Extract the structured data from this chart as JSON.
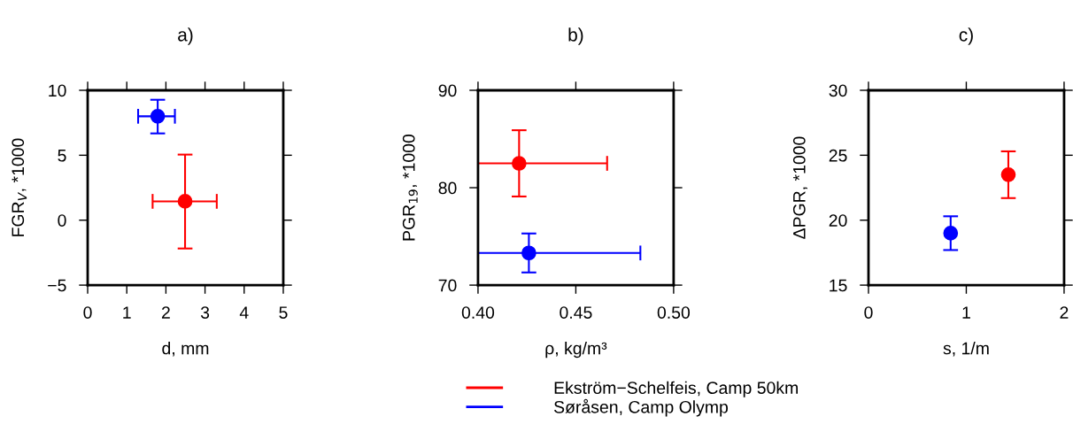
{
  "chart_data": [
    {
      "type": "scatter",
      "title": "a)",
      "xlabel": "d, mm",
      "ylabel": "FGR$_{V}$, *1000",
      "xlim": [
        0,
        5
      ],
      "xticks": [
        0,
        1,
        2,
        3,
        4,
        5
      ],
      "ylim": [
        -5,
        10
      ],
      "yticks": [
        {
          "value": -5,
          "label": "−5"
        },
        0,
        5,
        10
      ],
      "marker": "circle",
      "grid": false,
      "legend": false,
      "series": [
        {
          "color": "#ff0000",
          "x": [
            2.49
          ],
          "values": [
            1.45
          ],
          "xerrors": [
            [
              1.66,
              3.3
            ]
          ],
          "errors": [
            [
              -2.18,
              5.05
            ]
          ]
        },
        {
          "color": "#0000ff",
          "x": [
            1.79
          ],
          "values": [
            8.0
          ],
          "xerrors": [
            [
              1.29,
              2.23
            ]
          ],
          "errors": [
            [
              6.68,
              9.27
            ]
          ]
        }
      ]
    },
    {
      "type": "scatter",
      "title": "b)",
      "xlabel": "ρ, kg/m³",
      "ylabel": "PGR$_{19}$, *1000",
      "xlim": [
        0.4,
        0.5
      ],
      "xticks": [
        {
          "value": 0.4,
          "label": "0.40"
        },
        {
          "value": 0.45,
          "label": "0.45"
        },
        {
          "value": 0.5,
          "label": "0.50"
        }
      ],
      "ylim": [
        70,
        90
      ],
      "yticks": [
        70,
        80,
        90
      ],
      "marker": "circle",
      "grid": false,
      "legend": "bottom",
      "series": [
        {
          "name": "Ekström−Schelfeis, Camp 50km",
          "color": "#ff0000",
          "x": [
            0.421
          ],
          "values": [
            82.5
          ],
          "xerrors": [
            [
              0.4,
              0.466
            ]
          ],
          "errors": [
            [
              79.1,
              85.9
            ]
          ]
        },
        {
          "name": "Søråsen, Camp Olymp",
          "color": "#0000ff",
          "x": [
            0.426
          ],
          "values": [
            73.3
          ],
          "xerrors": [
            [
              0.4,
              0.483
            ]
          ],
          "errors": [
            [
              71.3,
              75.3
            ]
          ]
        }
      ]
    },
    {
      "type": "scatter",
      "title": "c)",
      "xlabel": "s, 1/m",
      "ylabel": "ΔPGR, *1000",
      "xlim": [
        0,
        2
      ],
      "xticks": [
        0,
        1,
        2
      ],
      "ylim": [
        15,
        30
      ],
      "yticks": [
        15,
        20,
        25,
        30
      ],
      "marker": "circle",
      "grid": false,
      "legend": false,
      "series": [
        {
          "color": "#ff0000",
          "x": [
            1.43
          ],
          "values": [
            23.5
          ],
          "errors": [
            [
              21.7,
              25.3
            ]
          ]
        },
        {
          "color": "#0000ff",
          "x": [
            0.84
          ],
          "values": [
            19.0
          ],
          "errors": [
            [
              17.7,
              20.3
            ]
          ]
        }
      ]
    }
  ]
}
